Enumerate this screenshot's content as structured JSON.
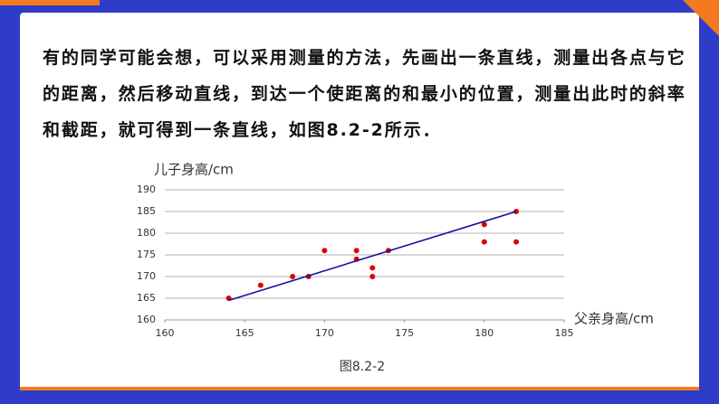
{
  "paragraph": "有的同学可能会想，可以采用测量的方法，先画出一条直线，测量出各点与它的距离，然后移动直线，到达一个使距离的和最小的位置，测量出此时的斜率和截距，就可得到一条直线，如图8.2-2所示．",
  "caption": "图8.2-2",
  "chart_data": {
    "type": "scatter",
    "y_label": "儿子身高/cm",
    "x_label": "父亲身高/cm",
    "xlim": [
      160,
      185
    ],
    "xticks": [
      160,
      165,
      170,
      175,
      180,
      185
    ],
    "ylim": [
      160,
      190
    ],
    "yticks": [
      160,
      165,
      170,
      175,
      180,
      185,
      190
    ],
    "grid": true,
    "series": [
      {
        "type": "scatter",
        "color": "#e00000",
        "x": [
          164,
          166,
          168,
          169,
          170,
          172,
          172,
          173,
          173,
          174,
          180,
          180,
          182,
          182
        ],
        "values": [
          165,
          168,
          170,
          170,
          176,
          176,
          174,
          172,
          170,
          176,
          182,
          178,
          185,
          178
        ]
      },
      {
        "type": "line",
        "color": "#1010a0",
        "x": [
          164,
          182
        ],
        "values": [
          164.5,
          185
        ]
      }
    ]
  }
}
